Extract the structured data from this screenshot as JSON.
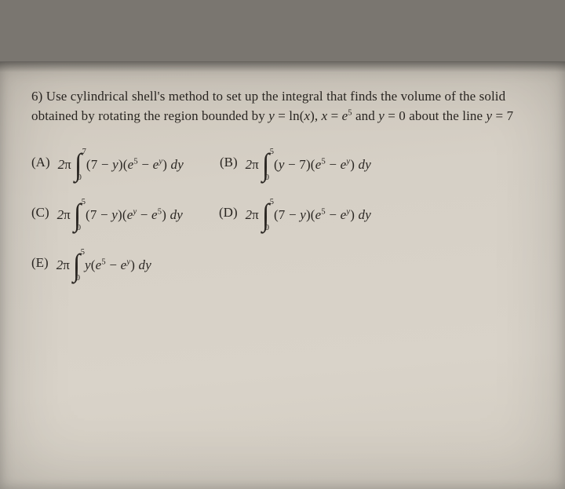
{
  "question": {
    "prefix": "6) Use cylindrical shell's method to set up the integral that finds the volume of the solid obtained by rotating the region bounded by ",
    "eq1_lhs": "y",
    "eq1_rhs_fn": "ln",
    "eq1_rhs_arg": "x",
    "eq2_lhs": "x",
    "eq2_rhs_base": "e",
    "eq2_rhs_exp": "5",
    "eq3_lhs": "y",
    "eq3_rhs": "0",
    "about": " about the line ",
    "line_lhs": "y",
    "line_rhs": "7"
  },
  "opts": {
    "A": {
      "label": "(A)",
      "lower": "0",
      "upper": "7",
      "body": "(7 − y)(e⁵ − eʸ) dy"
    },
    "B": {
      "label": "(B)",
      "lower": "0",
      "upper": "5",
      "body": "(y − 7)(e⁵ − eʸ) dy"
    },
    "C": {
      "label": "(C)",
      "lower": "0",
      "upper": "5",
      "body": "(7 − y)(eʸ − e⁵) dy"
    },
    "D": {
      "label": "(D)",
      "lower": "0",
      "upper": "5",
      "body": "(7 − y)(e⁵ − eʸ) dy"
    },
    "E": {
      "label": "(E)",
      "lower": "0",
      "upper": "5",
      "body": "y(e⁵ − eʸ) dy"
    }
  },
  "sym": {
    "twopi_pre": "2",
    "pi": "π",
    "int": "∫"
  }
}
